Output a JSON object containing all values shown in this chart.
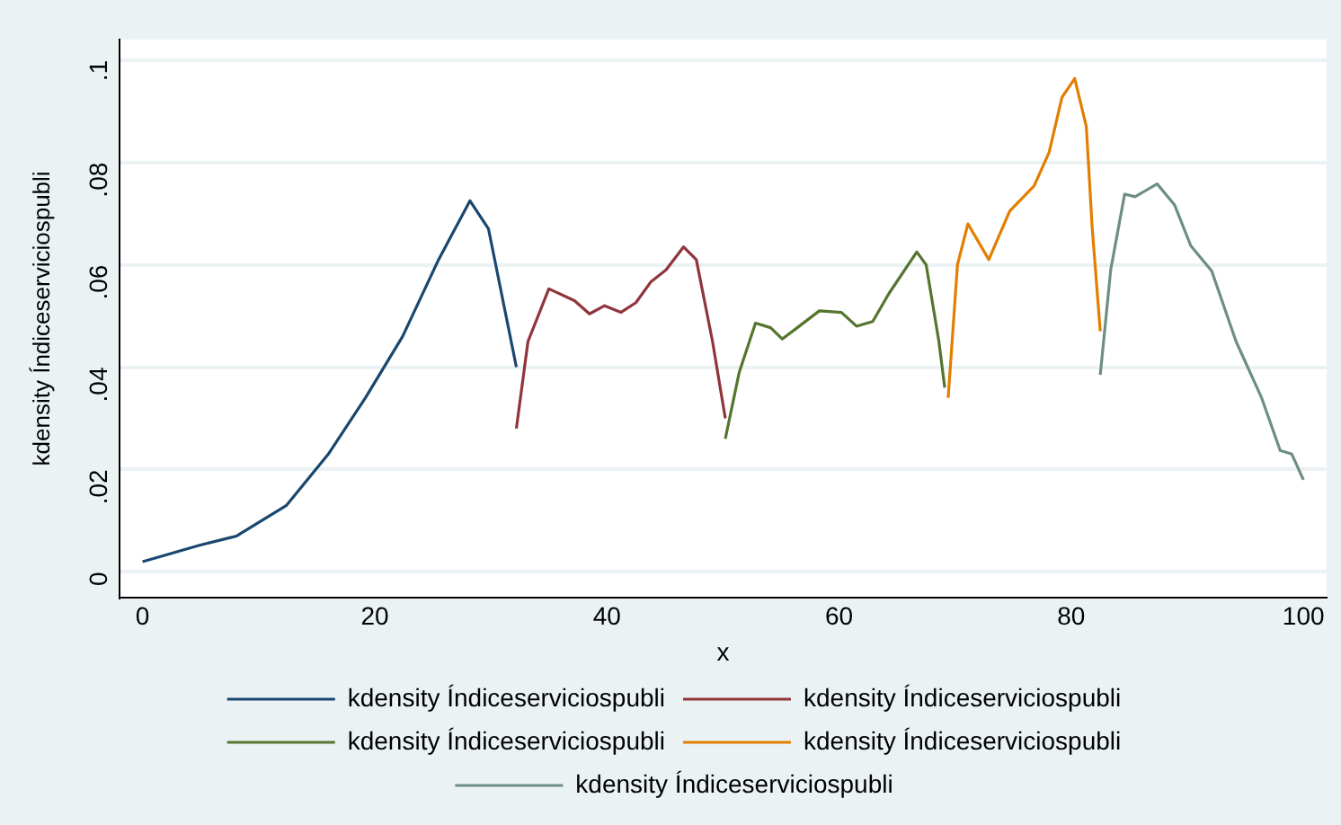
{
  "chart_data": {
    "type": "line",
    "xlabel": "x",
    "ylabel": "kdensity Índiceserviciospubli",
    "xlim": [
      -2,
      102
    ],
    "xticks": [
      0,
      20,
      40,
      60,
      80,
      100
    ],
    "ylim": [
      -0.005,
      0.104
    ],
    "yticks": [
      0,
      {
        "value": 0.02,
        "label": ".02"
      },
      {
        "value": 0.04,
        "label": ".04"
      },
      {
        "value": 0.06,
        "label": ".06"
      },
      {
        "value": 0.08,
        "label": ".08"
      },
      {
        "value": 0.1,
        "label": ".1"
      }
    ],
    "grid": "y",
    "legend": "bottom",
    "marker": "none",
    "line_style": "solid",
    "series": [
      {
        "name": "kdensity Índiceserviciospubli",
        "color": "#1a476f",
        "x": [
          0,
          4.9,
          8.1,
          12.4,
          16,
          19.2,
          22.4,
          25.5,
          28.2,
          29.8,
          32.2
        ],
        "values": [
          0.002,
          0.0052,
          0.007,
          0.013,
          0.023,
          0.034,
          0.046,
          0.061,
          0.0725,
          0.067,
          0.04
        ]
      },
      {
        "name": "kdensity Índiceserviciospubli",
        "color": "#90353b",
        "x": [
          32.2,
          33.2,
          35,
          37.2,
          38.5,
          39.8,
          41.2,
          42.5,
          43.8,
          45.1,
          46.6,
          47.7,
          49.1,
          50.2
        ],
        "values": [
          0.028,
          0.045,
          0.0553,
          0.053,
          0.0504,
          0.052,
          0.0507,
          0.0526,
          0.0567,
          0.059,
          0.0635,
          0.061,
          0.045,
          0.03
        ]
      },
      {
        "name": "kdensity Índiceserviciospubli",
        "color": "#55752f",
        "x": [
          50.2,
          51.4,
          52.8,
          54.1,
          55.1,
          56.4,
          58.3,
          60.2,
          61.5,
          62.9,
          64.3,
          66.7,
          67.5,
          68.6,
          69.1
        ],
        "values": [
          0.026,
          0.039,
          0.0486,
          0.0477,
          0.0455,
          0.0477,
          0.051,
          0.0507,
          0.048,
          0.0489,
          0.0544,
          0.0625,
          0.06,
          0.045,
          0.036
        ]
      },
      {
        "name": "kdensity Índiceserviciospubli",
        "color": "#e37e00",
        "x": [
          69.4,
          70.2,
          71.1,
          72.9,
          74.7,
          76.8,
          78.1,
          79.2,
          80.3,
          81.3,
          81.8,
          82.5
        ],
        "values": [
          0.034,
          0.06,
          0.068,
          0.061,
          0.0705,
          0.0754,
          0.082,
          0.0927,
          0.0964,
          0.087,
          0.0674,
          0.047
        ]
      },
      {
        "name": "kdensity Índiceserviciospubli",
        "color": "#6e8e84",
        "x": [
          82.5,
          83.4,
          84.6,
          85.5,
          87.4,
          88.9,
          90.3,
          92.1,
          94.2,
          96.4,
          98,
          99,
          100
        ],
        "values": [
          0.0385,
          0.059,
          0.0738,
          0.0733,
          0.0758,
          0.0717,
          0.0637,
          0.0588,
          0.045,
          0.034,
          0.0237,
          0.023,
          0.018
        ]
      }
    ]
  }
}
